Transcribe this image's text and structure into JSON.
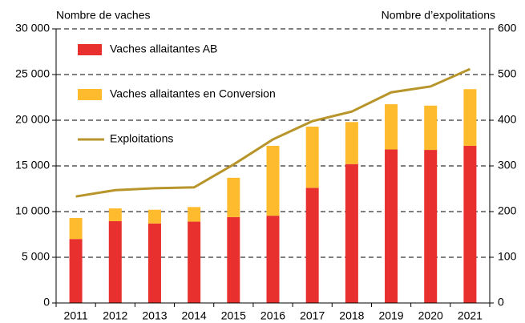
{
  "chart_data": {
    "type": "bar",
    "ylabel": "Nombre de vaches",
    "y2label": "Nombre d’expolitations",
    "categories": [
      "2011",
      "2012",
      "2013",
      "2014",
      "2015",
      "2016",
      "2017",
      "2018",
      "2019",
      "2020",
      "2021"
    ],
    "series": [
      {
        "name": "Vaches allaitantes AB",
        "color": "#e8312f",
        "values": [
          7000,
          8950,
          8700,
          8900,
          9400,
          9550,
          12600,
          15200,
          16800,
          16750,
          17200
        ]
      },
      {
        "name": "Vaches allaitantes en Conversion",
        "color": "#fdbb2d",
        "values": [
          2300,
          1400,
          1500,
          1600,
          4300,
          7650,
          6700,
          4600,
          4950,
          4850,
          6200
        ]
      },
      {
        "name": "Exploitations",
        "type": "line",
        "axis": "y2",
        "color": "#b8952a",
        "values": [
          233,
          247,
          251,
          253,
          303,
          358,
          398,
          419,
          461,
          474,
          512
        ]
      }
    ],
    "stacked": true,
    "ylim": [
      0,
      30000
    ],
    "yticks": [
      0,
      {
        "value": 5000,
        "label": "5 000"
      },
      {
        "value": 10000,
        "label": "10 000"
      },
      {
        "value": 15000,
        "label": "15 000"
      },
      {
        "value": 20000,
        "label": "20 000"
      },
      {
        "value": 25000,
        "label": "25 000"
      },
      {
        "value": 30000,
        "label": "30 000"
      }
    ],
    "y2lim": [
      0,
      600
    ],
    "y2ticks": [
      0,
      100,
      200,
      300,
      400,
      500,
      600
    ],
    "grid": true,
    "legend": "upper left"
  }
}
